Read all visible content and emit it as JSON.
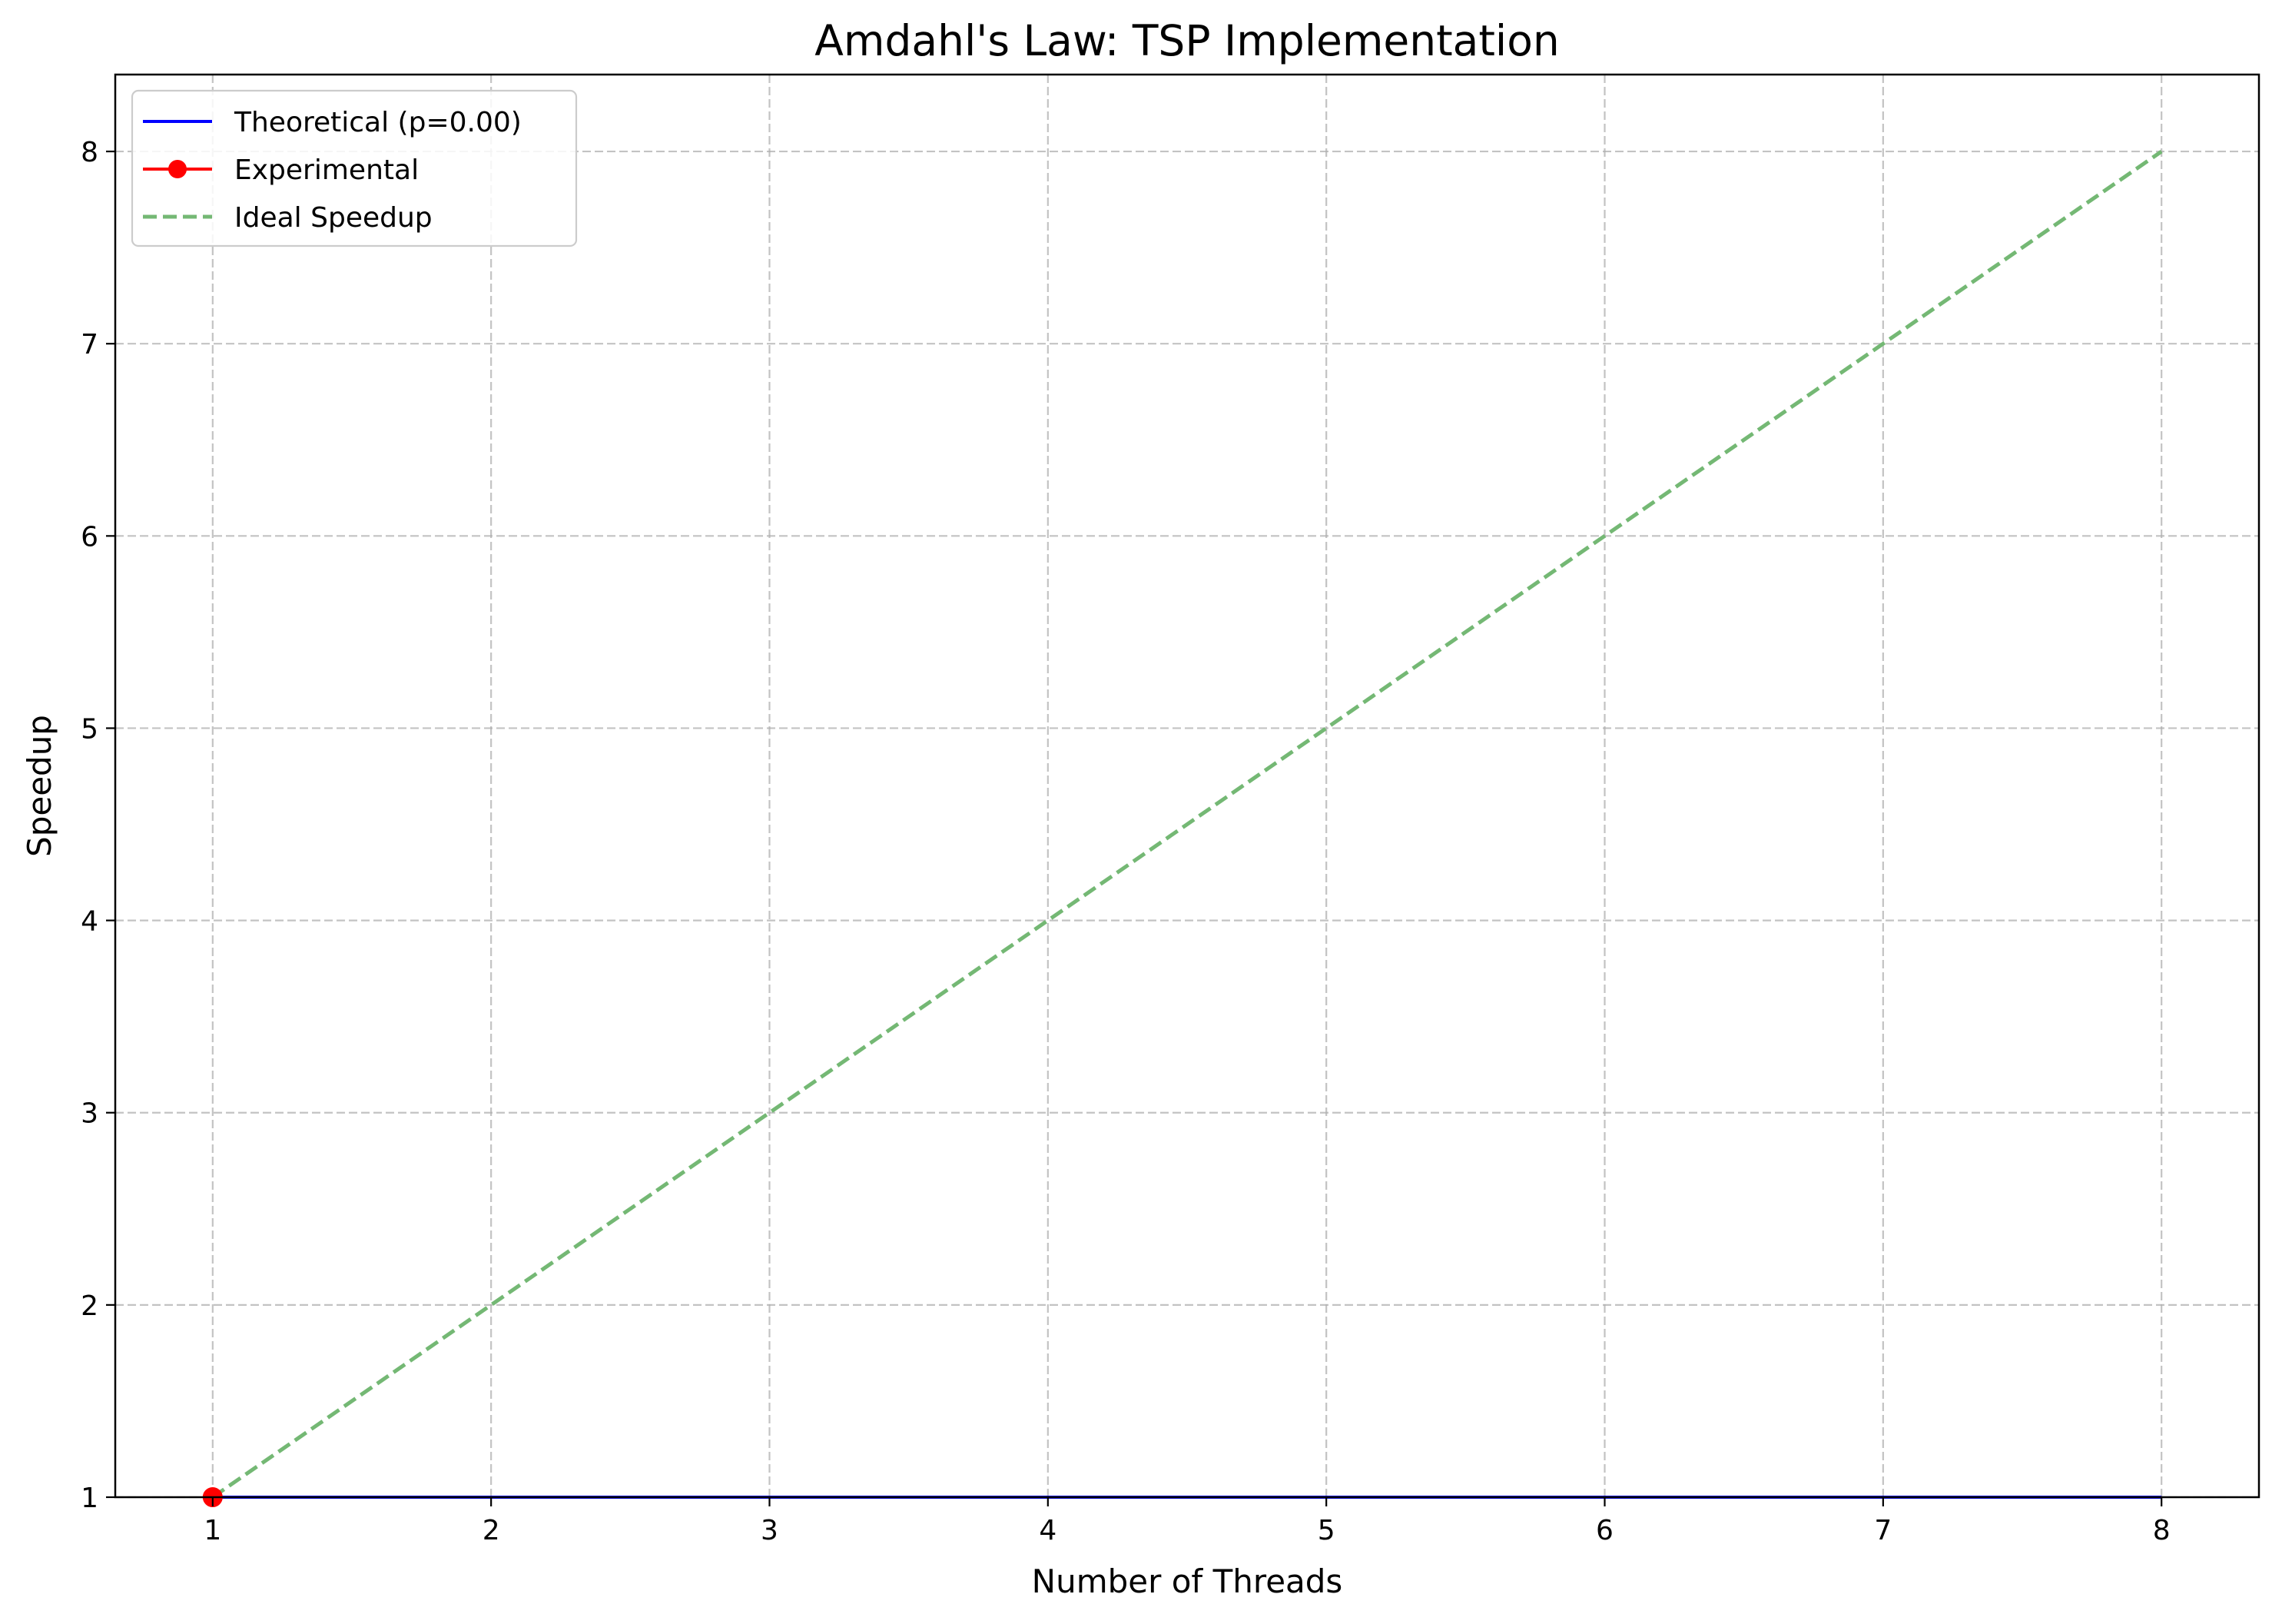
{
  "chart_data": {
    "type": "line",
    "title": "Amdahl's Law: TSP Implementation",
    "xlabel": "Number of Threads",
    "ylabel": "Speedup",
    "xlim": [
      0.65,
      8.35
    ],
    "ylim": [
      1,
      8.4
    ],
    "x_ticks": [
      1,
      2,
      3,
      4,
      5,
      6,
      7,
      8
    ],
    "y_ticks": [
      1,
      2,
      3,
      4,
      5,
      6,
      7,
      8
    ],
    "grid": true,
    "legend_position": "upper-left",
    "series": [
      {
        "name": "Theoretical (p=0.00)",
        "color": "#0000ff",
        "style": "solid",
        "marker": "none",
        "x": [
          1,
          2,
          3,
          4,
          5,
          6,
          7,
          8
        ],
        "y": [
          1,
          1,
          1,
          1,
          1,
          1,
          1,
          1
        ]
      },
      {
        "name": "Experimental",
        "color": "#ff0000",
        "style": "solid",
        "marker": "circle",
        "x": [
          1
        ],
        "y": [
          1
        ]
      },
      {
        "name": "Ideal Speedup",
        "color": "#74b874",
        "style": "dashed",
        "marker": "none",
        "x": [
          1,
          2,
          3,
          4,
          5,
          6,
          7,
          8
        ],
        "y": [
          1,
          2,
          3,
          4,
          5,
          6,
          7,
          8
        ]
      }
    ]
  }
}
